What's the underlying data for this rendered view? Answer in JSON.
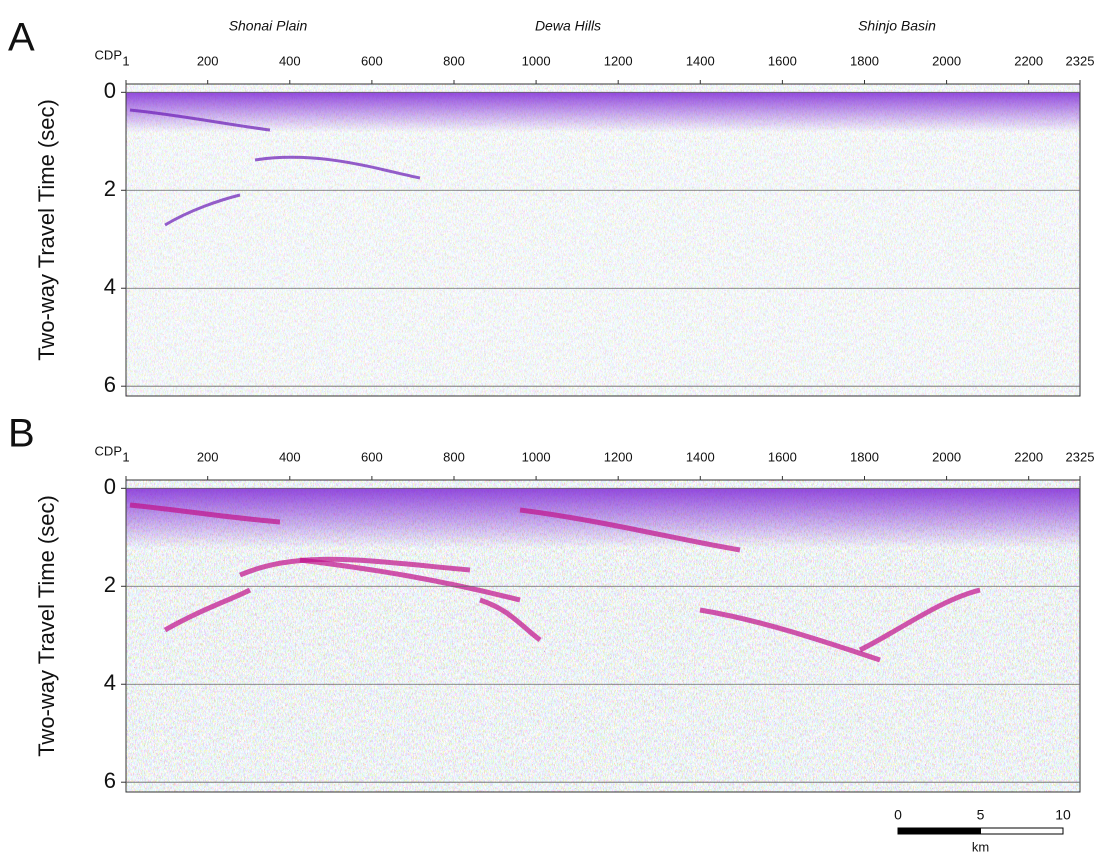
{
  "chart_data": [
    {
      "type": "seismic",
      "panel_label": "A",
      "xlabel": "CDP",
      "ylabel": "Two-way Travel Time (sec)",
      "annotations": [
        "Shonai Plain",
        "Dewa Hills",
        "Shinjo Basin"
      ],
      "xlim": [
        1,
        2325
      ],
      "xticks": [
        1,
        200,
        400,
        600,
        800,
        1000,
        1200,
        1400,
        1600,
        1800,
        2000,
        2200,
        2325
      ],
      "ylim": [
        -0.17,
        6.2
      ],
      "y_inverted": true,
      "yticks": [
        0,
        2,
        4,
        6
      ],
      "grid": true
    },
    {
      "type": "seismic",
      "panel_label": "B",
      "xlabel": "CDP",
      "ylabel": "Two-way Travel Time (sec)",
      "xlim": [
        1,
        2325
      ],
      "xticks": [
        1,
        200,
        400,
        600,
        800,
        1000,
        1200,
        1400,
        1600,
        1800,
        2000,
        2200,
        2325
      ],
      "ylim": [
        -0.17,
        6.2
      ],
      "y_inverted": true,
      "yticks": [
        0,
        2,
        4,
        6
      ],
      "grid": true
    }
  ],
  "scale_bar": {
    "ticks": [
      0,
      5,
      10
    ],
    "unit": "km"
  }
}
